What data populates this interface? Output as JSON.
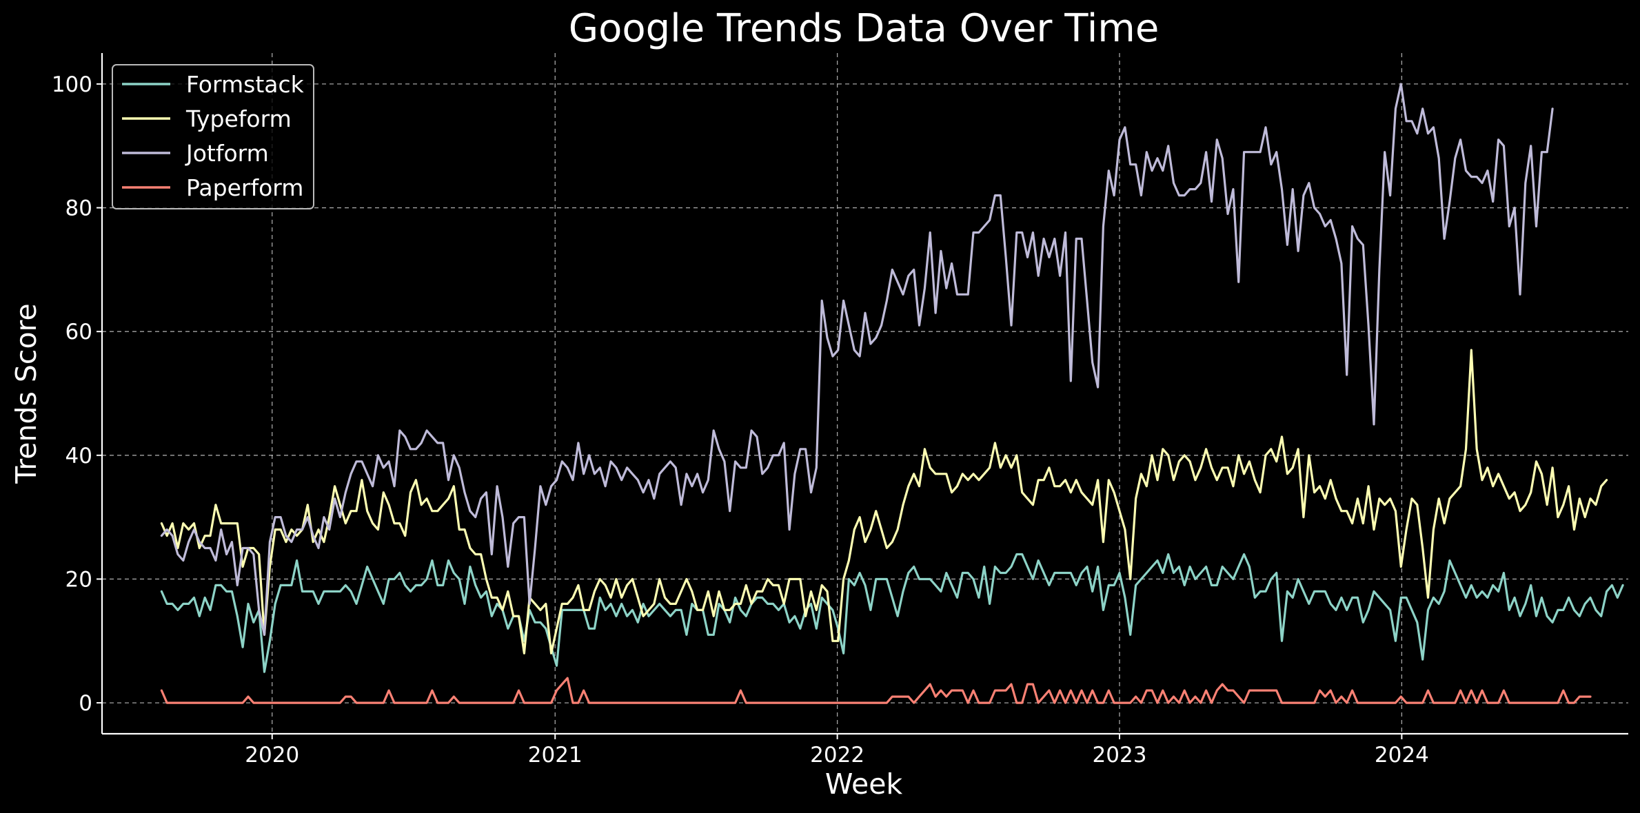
{
  "colors": {
    "background": "#000000",
    "text": "#ffffff",
    "Formstack": "#8dd3c7",
    "Typeform": "#feffb3",
    "Jotform": "#bfbbd9",
    "Paperform": "#fa8174"
  },
  "chart_data": {
    "type": "line",
    "title": "Google Trends Data Over Time",
    "xlabel": "Week",
    "ylabel": "Trends Score",
    "x_start": "2019-08-11",
    "x_frequency": "weekly",
    "xlim": [
      "2019-05-26",
      "2024-10-20"
    ],
    "ylim": [
      -5,
      105
    ],
    "xticks": [
      "2020",
      "2021",
      "2022",
      "2023",
      "2024"
    ],
    "yticks": [
      0,
      20,
      40,
      60,
      80,
      100
    ],
    "grid": true,
    "legend_position": "top-left",
    "series": [
      {
        "name": "Formstack",
        "values": [
          18,
          16,
          16,
          15,
          16,
          16,
          17,
          14,
          17,
          15,
          19,
          19,
          18,
          18,
          14,
          9,
          16,
          13,
          15,
          5,
          10,
          16,
          19,
          19,
          19,
          23,
          18,
          18,
          18,
          16,
          18,
          18,
          18,
          18,
          19,
          18,
          16,
          19,
          22,
          20,
          18,
          16,
          20,
          20,
          21,
          19,
          18,
          19,
          19,
          20,
          23,
          19,
          19,
          23,
          21,
          20,
          16,
          22,
          19,
          17,
          18,
          14,
          16,
          15,
          12,
          14,
          14,
          10,
          15,
          13,
          13,
          12,
          9,
          6,
          15,
          15,
          15,
          15,
          15,
          12,
          12,
          17,
          15,
          16,
          14,
          16,
          14,
          15,
          13,
          16,
          14,
          15,
          16,
          15,
          14,
          15,
          15,
          11,
          16,
          15,
          15,
          11,
          11,
          16,
          15,
          13,
          17,
          15,
          14,
          16,
          17,
          17,
          16,
          16,
          15,
          16,
          13,
          14,
          12,
          15,
          16,
          12,
          17,
          16,
          15,
          12,
          8,
          20,
          19,
          21,
          19,
          15,
          20,
          20,
          20,
          17,
          14,
          18,
          21,
          22,
          20,
          20,
          20,
          19,
          18,
          21,
          19,
          17,
          21,
          21,
          20,
          17,
          22,
          16,
          22,
          21,
          21,
          22,
          24,
          24,
          22,
          20,
          23,
          21,
          19,
          21,
          21,
          21,
          21,
          19,
          21,
          22,
          18,
          22,
          15,
          19,
          19,
          21,
          17,
          11,
          19,
          20,
          21,
          22,
          23,
          21,
          24,
          21,
          22,
          19,
          22,
          20,
          21,
          22,
          19,
          19,
          22,
          21,
          20,
          22,
          24,
          22,
          17,
          18,
          18,
          20,
          21,
          10,
          18,
          17,
          20,
          18,
          16,
          18,
          18,
          18,
          16,
          15,
          17,
          15,
          17,
          17,
          13,
          15,
          18,
          17,
          16,
          15,
          10,
          17,
          17,
          15,
          13,
          7,
          15,
          17,
          16,
          18,
          23,
          21,
          19,
          17,
          19,
          17,
          18,
          17,
          19,
          18,
          21,
          15,
          17,
          14,
          16,
          19,
          14,
          17,
          14,
          13,
          15,
          15,
          17,
          15,
          14,
          16,
          17,
          15,
          14,
          18,
          19,
          17,
          19
        ]
      },
      {
        "name": "Typeform",
        "values": [
          29,
          27,
          29,
          25,
          29,
          28,
          29,
          25,
          27,
          27,
          32,
          29,
          29,
          29,
          29,
          22,
          25,
          25,
          24,
          11,
          22,
          28,
          28,
          26,
          28,
          27,
          28,
          32,
          26,
          28,
          26,
          30,
          35,
          32,
          29,
          31,
          31,
          36,
          31,
          29,
          28,
          34,
          32,
          29,
          29,
          27,
          34,
          36,
          32,
          33,
          31,
          31,
          32,
          33,
          35,
          28,
          28,
          25,
          24,
          24,
          20,
          17,
          17,
          15,
          18,
          14,
          14,
          8,
          17,
          16,
          15,
          16,
          8,
          12,
          16,
          16,
          17,
          19,
          15,
          15,
          18,
          20,
          19,
          17,
          20,
          17,
          19,
          20,
          17,
          14,
          15,
          16,
          20,
          17,
          16,
          16,
          18,
          20,
          18,
          15,
          15,
          18,
          14,
          18,
          15,
          15,
          16,
          16,
          19,
          16,
          18,
          18,
          20,
          19,
          19,
          16,
          20,
          20,
          20,
          14,
          18,
          15,
          19,
          18,
          10,
          10,
          20,
          23,
          28,
          30,
          26,
          28,
          31,
          28,
          25,
          26,
          28,
          32,
          35,
          37,
          35,
          41,
          38,
          37,
          37,
          37,
          34,
          35,
          37,
          36,
          37,
          36,
          37,
          38,
          42,
          38,
          40,
          38,
          40,
          34,
          33,
          32,
          36,
          36,
          38,
          35,
          35,
          36,
          34,
          36,
          34,
          33,
          32,
          36,
          26,
          36,
          34,
          31,
          28,
          20,
          33,
          37,
          35,
          40,
          36,
          41,
          40,
          36,
          39,
          40,
          39,
          36,
          38,
          41,
          38,
          36,
          38,
          38,
          35,
          40,
          37,
          39,
          36,
          34,
          40,
          41,
          39,
          43,
          37,
          38,
          41,
          30,
          40,
          34,
          35,
          33,
          36,
          33,
          31,
          31,
          29,
          33,
          29,
          35,
          28,
          33,
          32,
          33,
          31,
          22,
          28,
          33,
          32,
          25,
          17,
          28,
          33,
          29,
          33,
          34,
          35,
          41,
          57,
          41,
          36,
          38,
          35,
          37,
          35,
          33,
          34,
          31,
          32,
          34,
          39,
          37,
          32,
          38,
          30,
          32,
          35,
          28,
          33,
          30,
          33,
          32,
          35,
          36
        ]
      },
      {
        "name": "Jotform",
        "values": [
          27,
          28,
          27,
          24,
          23,
          26,
          28,
          26,
          25,
          25,
          23,
          28,
          24,
          26,
          19,
          25,
          25,
          24,
          15,
          11,
          26,
          30,
          30,
          27,
          26,
          28,
          28,
          30,
          27,
          25,
          30,
          28,
          33,
          30,
          34,
          37,
          39,
          39,
          37,
          35,
          40,
          38,
          39,
          35,
          44,
          43,
          41,
          41,
          42,
          44,
          43,
          42,
          42,
          36,
          40,
          38,
          34,
          31,
          30,
          33,
          34,
          24,
          35,
          30,
          22,
          29,
          30,
          30,
          16,
          25,
          35,
          32,
          35,
          36,
          39,
          38,
          36,
          42,
          37,
          40,
          37,
          38,
          35,
          39,
          38,
          36,
          38,
          37,
          36,
          34,
          36,
          33,
          37,
          38,
          39,
          38,
          32,
          37,
          35,
          37,
          34,
          36,
          44,
          41,
          39,
          31,
          39,
          38,
          38,
          44,
          43,
          37,
          38,
          40,
          40,
          42,
          28,
          37,
          41,
          41,
          34,
          38,
          65,
          59,
          56,
          57,
          65,
          61,
          57,
          56,
          63,
          58,
          59,
          61,
          65,
          70,
          68,
          66,
          69,
          70,
          61,
          67,
          76,
          63,
          73,
          67,
          71,
          66,
          66,
          66,
          76,
          76,
          77,
          78,
          82,
          82,
          72,
          61,
          76,
          76,
          72,
          76,
          69,
          75,
          72,
          75,
          69,
          76,
          52,
          75,
          75,
          65,
          55,
          51,
          77,
          86,
          82,
          91,
          93,
          87,
          87,
          82,
          89,
          86,
          88,
          86,
          90,
          84,
          82,
          82,
          83,
          83,
          84,
          89,
          81,
          91,
          88,
          79,
          83,
          68,
          89,
          89,
          89,
          89,
          93,
          87,
          89,
          83,
          74,
          83,
          73,
          82,
          84,
          80,
          79,
          77,
          78,
          75,
          71,
          53,
          77,
          75,
          74,
          61,
          45,
          70,
          89,
          82,
          96,
          100,
          94,
          94,
          92,
          96,
          92,
          93,
          88,
          75,
          81,
          88,
          91,
          86,
          85,
          85,
          84,
          86,
          81,
          91,
          90,
          77,
          80,
          66,
          84,
          90,
          77,
          89,
          89,
          96
        ]
      },
      {
        "name": "Paperform",
        "values": [
          2,
          0,
          0,
          0,
          0,
          0,
          0,
          0,
          0,
          0,
          0,
          0,
          0,
          0,
          0,
          0,
          1,
          0,
          0,
          0,
          0,
          0,
          0,
          0,
          0,
          0,
          0,
          0,
          0,
          0,
          0,
          0,
          0,
          0,
          1,
          1,
          0,
          0,
          0,
          0,
          0,
          0,
          2,
          0,
          0,
          0,
          0,
          0,
          0,
          0,
          2,
          0,
          0,
          0,
          1,
          0,
          0,
          0,
          0,
          0,
          0,
          0,
          0,
          0,
          0,
          0,
          2,
          0,
          0,
          0,
          0,
          0,
          0,
          2,
          3,
          4,
          0,
          0,
          2,
          0,
          0,
          0,
          0,
          0,
          0,
          0,
          0,
          0,
          0,
          0,
          0,
          0,
          0,
          0,
          0,
          0,
          0,
          0,
          0,
          0,
          0,
          0,
          0,
          0,
          0,
          0,
          0,
          2,
          0,
          0,
          0,
          0,
          0,
          0,
          0,
          0,
          0,
          0,
          0,
          0,
          0,
          0,
          0,
          0,
          0,
          0,
          0,
          0,
          0,
          0,
          0,
          0,
          0,
          0,
          0,
          1,
          1,
          1,
          1,
          0,
          1,
          2,
          3,
          1,
          2,
          1,
          2,
          2,
          2,
          0,
          2,
          0,
          0,
          0,
          2,
          2,
          2,
          3,
          0,
          0,
          3,
          3,
          0,
          1,
          2,
          0,
          2,
          0,
          2,
          0,
          2,
          0,
          2,
          0,
          0,
          2,
          0,
          0,
          0,
          0,
          1,
          0,
          2,
          2,
          0,
          2,
          0,
          1,
          0,
          2,
          0,
          1,
          0,
          2,
          0,
          2,
          3,
          2,
          2,
          1,
          0,
          2,
          2,
          2,
          2,
          2,
          2,
          0,
          0,
          0,
          0,
          0,
          0,
          0,
          2,
          1,
          2,
          0,
          1,
          0,
          2,
          0,
          0,
          0,
          0,
          0,
          0,
          0,
          0,
          1,
          0,
          0,
          0,
          0,
          2,
          0,
          0,
          0,
          0,
          0,
          2,
          0,
          2,
          0,
          2,
          0,
          0,
          0,
          2,
          0,
          0,
          0,
          0,
          0,
          0,
          0,
          0,
          0,
          0,
          2,
          0,
          0,
          1,
          1,
          1
        ]
      }
    ]
  }
}
